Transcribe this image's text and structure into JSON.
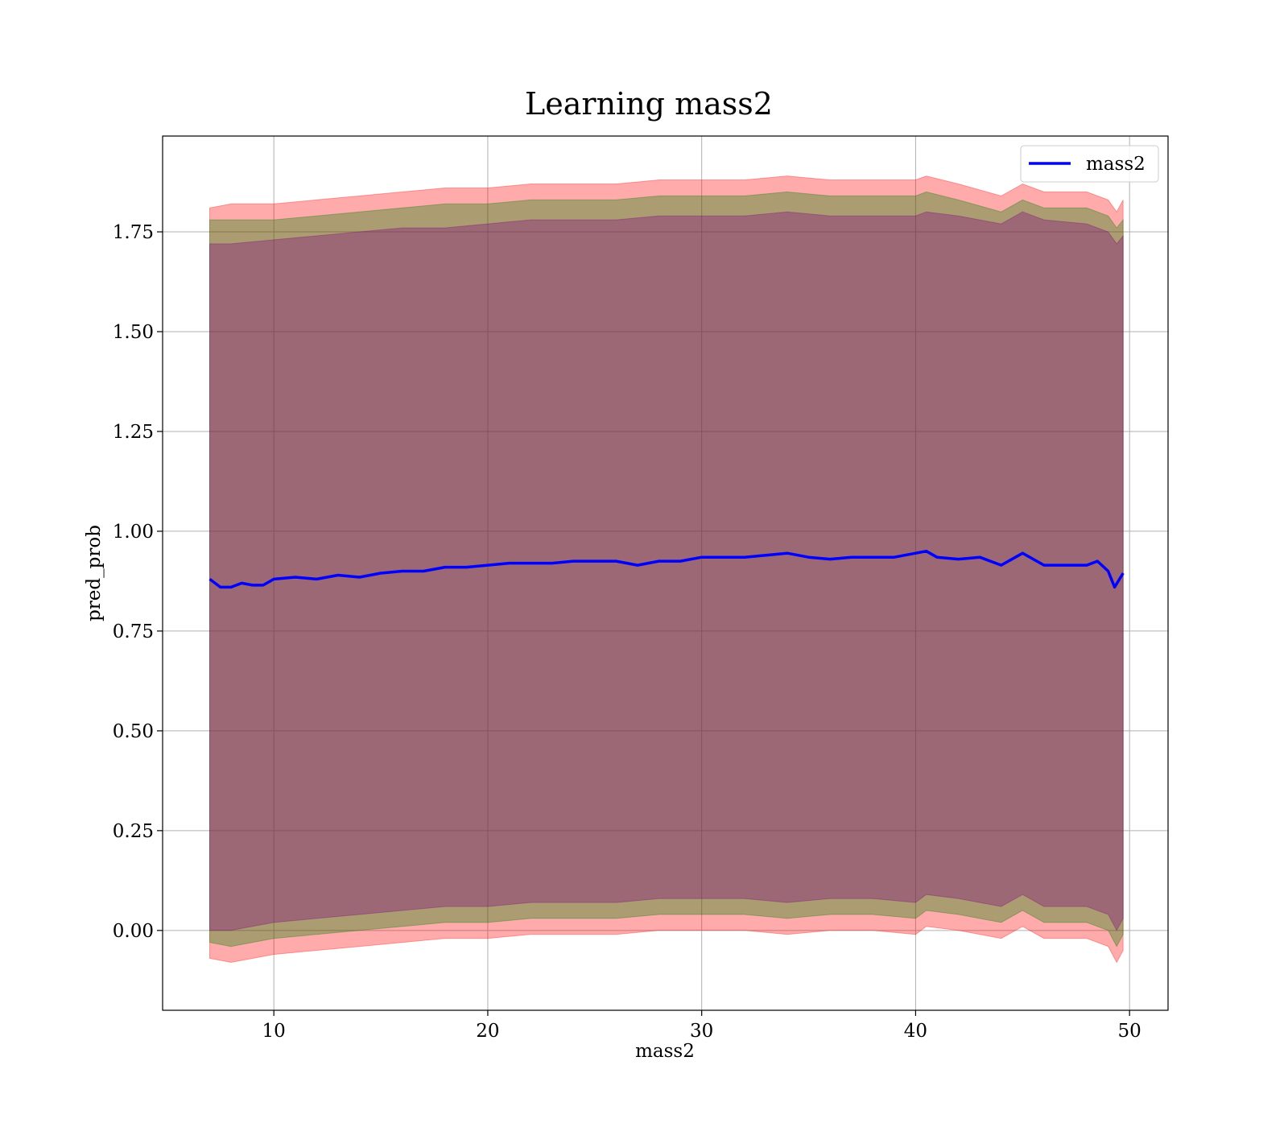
{
  "chart_data": {
    "type": "line",
    "title": "Learning mass2",
    "xlabel": "mass2",
    "ylabel": "pred_prob",
    "xlim": [
      4.8,
      51.8
    ],
    "ylim": [
      -0.2,
      1.99
    ],
    "xticks": [
      10,
      20,
      30,
      40,
      50
    ],
    "xtick_labels": [
      "10",
      "20",
      "30",
      "40",
      "50"
    ],
    "yticks": [
      0.0,
      0.25,
      0.5,
      0.75,
      1.0,
      1.25,
      1.5,
      1.75
    ],
    "ytick_labels": [
      "0.00",
      "0.25",
      "0.50",
      "0.75",
      "1.00",
      "1.25",
      "1.50",
      "1.75"
    ],
    "grid": true,
    "legend": {
      "location": "top-right",
      "entries": [
        {
          "label": "mass2",
          "color": "#0000ff"
        }
      ]
    },
    "series": [
      {
        "name": "mass2",
        "color": "#0000ff",
        "x": [
          7.0,
          7.5,
          8.0,
          8.5,
          9.0,
          9.5,
          10.0,
          11.0,
          12.0,
          13.0,
          14.0,
          15.0,
          16.0,
          17.0,
          18.0,
          19.0,
          20.0,
          21.0,
          22.0,
          23.0,
          24.0,
          25.0,
          26.0,
          27.0,
          28.0,
          29.0,
          30.0,
          31.0,
          32.0,
          33.0,
          34.0,
          35.0,
          36.0,
          37.0,
          38.0,
          39.0,
          40.0,
          40.5,
          41.0,
          42.0,
          43.0,
          44.0,
          45.0,
          46.0,
          47.0,
          48.0,
          48.5,
          49.0,
          49.3,
          49.7
        ],
        "y": [
          0.88,
          0.86,
          0.86,
          0.87,
          0.865,
          0.865,
          0.88,
          0.885,
          0.88,
          0.89,
          0.885,
          0.895,
          0.9,
          0.9,
          0.91,
          0.91,
          0.915,
          0.92,
          0.92,
          0.92,
          0.925,
          0.925,
          0.925,
          0.915,
          0.925,
          0.925,
          0.935,
          0.935,
          0.935,
          0.94,
          0.945,
          0.935,
          0.93,
          0.935,
          0.935,
          0.935,
          0.945,
          0.95,
          0.935,
          0.93,
          0.935,
          0.915,
          0.945,
          0.915,
          0.915,
          0.915,
          0.925,
          0.9,
          0.86,
          0.895
        ]
      }
    ],
    "bands": [
      {
        "description_color": "#ff0000",
        "opacity": 0.33,
        "x": [
          7.0,
          8.0,
          10.0,
          12.0,
          14.0,
          16.0,
          18.0,
          20.0,
          22.0,
          24.0,
          26.0,
          28.0,
          30.0,
          32.0,
          34.0,
          36.0,
          38.0,
          40.0,
          40.5,
          42.0,
          44.0,
          45.0,
          46.0,
          48.0,
          49.0,
          49.4,
          49.7
        ],
        "upper": [
          1.81,
          1.82,
          1.82,
          1.83,
          1.84,
          1.85,
          1.86,
          1.86,
          1.87,
          1.87,
          1.87,
          1.88,
          1.88,
          1.88,
          1.89,
          1.88,
          1.88,
          1.88,
          1.89,
          1.87,
          1.84,
          1.87,
          1.85,
          1.85,
          1.83,
          1.8,
          1.83
        ],
        "lower": [
          -0.07,
          -0.08,
          -0.06,
          -0.05,
          -0.04,
          -0.03,
          -0.02,
          -0.02,
          -0.01,
          -0.01,
          -0.01,
          0.0,
          0.0,
          0.0,
          -0.01,
          0.0,
          0.0,
          -0.01,
          0.01,
          0.0,
          -0.02,
          0.01,
          -0.02,
          -0.02,
          -0.04,
          -0.08,
          -0.05
        ]
      },
      {
        "description_color": "#008000",
        "opacity": 0.33,
        "x": [
          7.0,
          8.0,
          10.0,
          12.0,
          14.0,
          16.0,
          18.0,
          20.0,
          22.0,
          24.0,
          26.0,
          28.0,
          30.0,
          32.0,
          34.0,
          36.0,
          38.0,
          40.0,
          40.5,
          42.0,
          44.0,
          45.0,
          46.0,
          48.0,
          49.0,
          49.4,
          49.7
        ],
        "upper": [
          1.78,
          1.78,
          1.78,
          1.79,
          1.8,
          1.81,
          1.82,
          1.82,
          1.83,
          1.83,
          1.83,
          1.84,
          1.84,
          1.84,
          1.85,
          1.84,
          1.84,
          1.84,
          1.85,
          1.83,
          1.8,
          1.83,
          1.81,
          1.81,
          1.79,
          1.76,
          1.78
        ],
        "lower": [
          -0.03,
          -0.04,
          -0.02,
          -0.01,
          0.0,
          0.01,
          0.02,
          0.02,
          0.03,
          0.03,
          0.03,
          0.04,
          0.04,
          0.04,
          0.03,
          0.04,
          0.04,
          0.03,
          0.05,
          0.04,
          0.02,
          0.05,
          0.02,
          0.02,
          0.0,
          -0.04,
          -0.01
        ]
      },
      {
        "description_color": "#800080",
        "opacity": 0.33,
        "x": [
          7.0,
          8.0,
          10.0,
          12.0,
          14.0,
          16.0,
          18.0,
          20.0,
          22.0,
          24.0,
          26.0,
          28.0,
          30.0,
          32.0,
          34.0,
          36.0,
          38.0,
          40.0,
          40.5,
          42.0,
          44.0,
          45.0,
          46.0,
          48.0,
          49.0,
          49.4,
          49.7
        ],
        "upper": [
          1.72,
          1.72,
          1.73,
          1.74,
          1.75,
          1.76,
          1.76,
          1.77,
          1.78,
          1.78,
          1.78,
          1.79,
          1.79,
          1.79,
          1.8,
          1.79,
          1.79,
          1.79,
          1.8,
          1.79,
          1.77,
          1.8,
          1.78,
          1.77,
          1.75,
          1.72,
          1.74
        ],
        "lower": [
          0.0,
          0.0,
          0.02,
          0.03,
          0.04,
          0.05,
          0.06,
          0.06,
          0.07,
          0.07,
          0.07,
          0.08,
          0.08,
          0.08,
          0.07,
          0.08,
          0.08,
          0.07,
          0.09,
          0.08,
          0.06,
          0.09,
          0.06,
          0.06,
          0.04,
          0.0,
          0.03
        ]
      }
    ]
  }
}
